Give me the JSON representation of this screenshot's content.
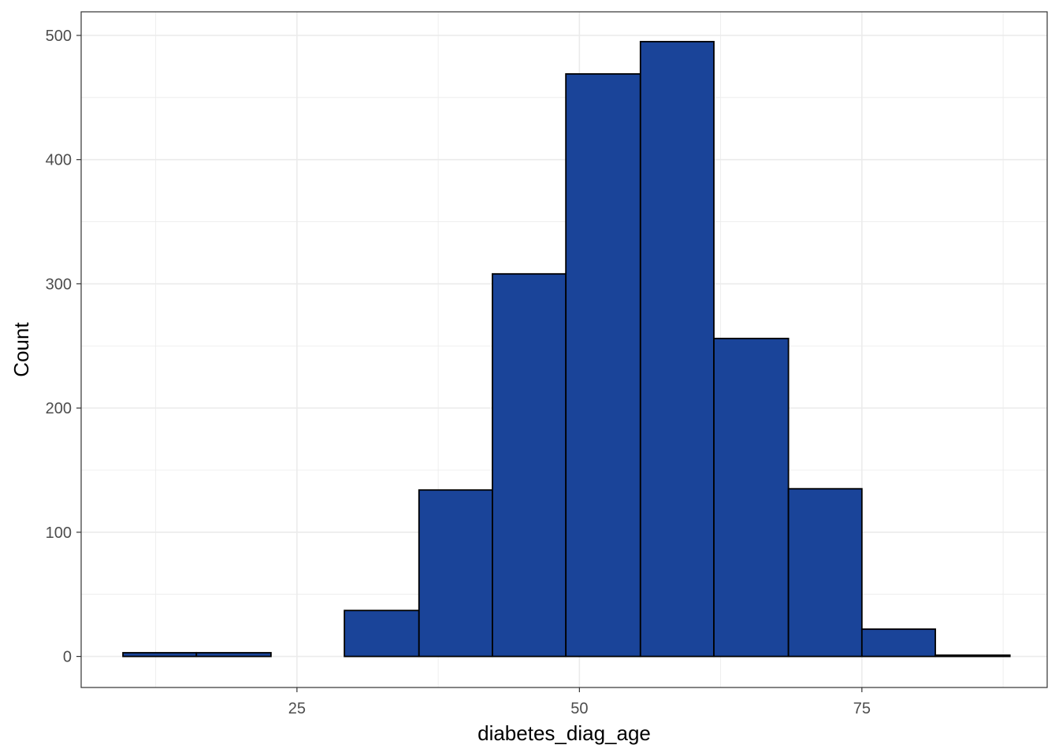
{
  "chart_data": {
    "type": "bar",
    "subtype": "histogram",
    "xlabel": "diabetes_diag_age",
    "ylabel": "Count",
    "x_ticks": [
      25,
      50,
      75
    ],
    "y_ticks": [
      0,
      100,
      200,
      300,
      400,
      500
    ],
    "xlim": [
      5.9,
      91.4
    ],
    "ylim": [
      -25,
      519
    ],
    "bins": [
      {
        "x0": 9.6,
        "x1": 16.1,
        "count": 3
      },
      {
        "x0": 16.1,
        "x1": 22.7,
        "count": 3
      },
      {
        "x0": 22.7,
        "x1": 29.2,
        "count": 0
      },
      {
        "x0": 29.2,
        "x1": 35.8,
        "count": 37
      },
      {
        "x0": 35.8,
        "x1": 42.3,
        "count": 134
      },
      {
        "x0": 42.3,
        "x1": 48.8,
        "count": 308
      },
      {
        "x0": 48.8,
        "x1": 55.4,
        "count": 469
      },
      {
        "x0": 55.4,
        "x1": 61.9,
        "count": 495
      },
      {
        "x0": 61.9,
        "x1": 68.5,
        "count": 256
      },
      {
        "x0": 68.5,
        "x1": 75.0,
        "count": 135
      },
      {
        "x0": 75.0,
        "x1": 81.5,
        "count": 22
      },
      {
        "x0": 81.5,
        "x1": 88.1,
        "count": 1
      }
    ],
    "bar_fill": "#1a4499",
    "bar_stroke": "#000000",
    "grid": true,
    "grid_color": "#ebebeb",
    "panel_border_color": "#333333",
    "legend": "none"
  }
}
